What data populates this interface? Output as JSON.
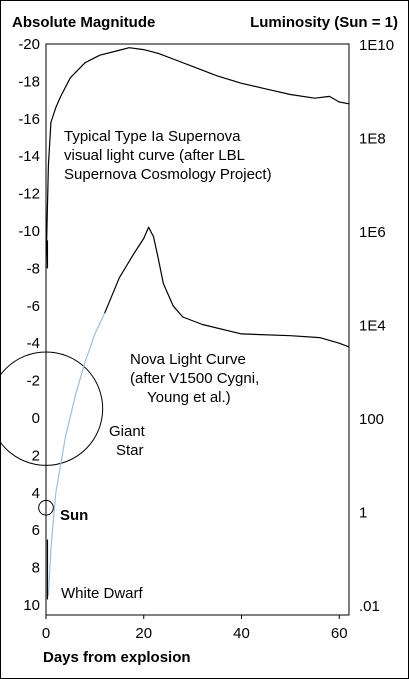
{
  "chart_data": {
    "type": "line",
    "title_left": "Absolute Magnitude",
    "title_right": "Luminosity (Sun = 1)",
    "xlabel": "Days from explosion",
    "xlim": [
      0,
      62
    ],
    "ylim": [
      10,
      -20
    ],
    "x_ticks": [
      "0",
      "20",
      "40",
      "60"
    ],
    "y_ticks_left": [
      "-20",
      "-18",
      "-16",
      "-14",
      "-12",
      "-10",
      "-8",
      "-6",
      "-4",
      "-2",
      "0",
      "2",
      "4",
      "6",
      "8",
      "10"
    ],
    "y_ticks_right": [
      "1E10",
      "1E8",
      "1E6",
      "1E4",
      "100",
      "1",
      ".01"
    ],
    "series": [
      {
        "name": "Typical Type Ia Supernova",
        "color": "#000000",
        "x": [
          0,
          0.5,
          1,
          2,
          3,
          5,
          8,
          11,
          14,
          17,
          20,
          23,
          26,
          30,
          35,
          40,
          45,
          50,
          55,
          58,
          60,
          62
        ],
        "y": [
          -8.0,
          -13.5,
          -15.8,
          -16.6,
          -17.2,
          -18.2,
          -19.0,
          -19.4,
          -19.6,
          -19.8,
          -19.7,
          -19.5,
          -19.2,
          -18.8,
          -18.3,
          -17.9,
          -17.6,
          -17.3,
          -17.1,
          -17.2,
          -16.9,
          -16.8
        ]
      },
      {
        "name": "Nova Light Curve",
        "color": "#000000",
        "x": [
          12,
          15,
          18,
          20,
          21,
          22,
          23,
          24,
          26,
          28,
          32,
          40,
          50,
          56,
          60,
          62
        ],
        "y": [
          -5.6,
          -7.5,
          -8.8,
          -9.6,
          -10.2,
          -9.7,
          -8.5,
          -7.2,
          -6.0,
          -5.4,
          -5.0,
          -4.5,
          -4.4,
          -4.3,
          -4.0,
          -3.8
        ]
      },
      {
        "name": "Nova rise",
        "color": "#9fbfd8",
        "x": [
          0.5,
          1,
          2,
          4,
          6,
          8,
          10,
          12
        ],
        "y": [
          9.5,
          7.0,
          4.0,
          1.0,
          -1.2,
          -3.0,
          -4.5,
          -5.6
        ]
      }
    ],
    "shapes": [
      {
        "name": "Giant Star",
        "center_x": 0,
        "center_y_mag": -0.5,
        "radius_days": 11.6
      },
      {
        "name": "Sun",
        "center_x": 0,
        "center_y_mag": 4.8,
        "radius_days": 1.5
      }
    ],
    "annotations": {
      "supernova": [
        "Typical Type Ia Supernova",
        "visual light curve (after LBL",
        "Supernova Cosmology Project)"
      ],
      "nova": [
        "Nova Light Curve",
        "(after V1500 Cygni,",
        "Young et al.)"
      ],
      "giant": [
        "Giant",
        "Star"
      ],
      "sun": "Sun",
      "white_dwarf": "White Dwarf"
    }
  }
}
